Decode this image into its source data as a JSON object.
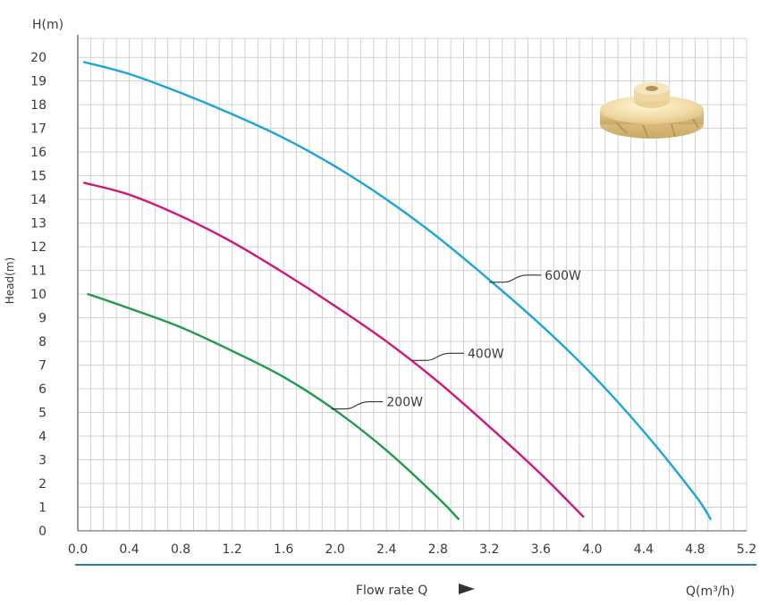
{
  "chart_data": {
    "type": "line",
    "y_unit_label": "H(m)",
    "y_axis_label": "Head(m)",
    "x_axis_label": "Flow rate Q",
    "x_unit_label": "Q(m³/h)",
    "xlim": [
      0,
      5.2
    ],
    "ylim": [
      0,
      20.8
    ],
    "x_ticks": [
      "0.0",
      "0.4",
      "0.8",
      "1.2",
      "1.6",
      "2.0",
      "2.4",
      "2.8",
      "3.2",
      "3.6",
      "4.0",
      "4.4",
      "4.8",
      "5.2"
    ],
    "y_ticks": [
      "0",
      "1",
      "2",
      "3",
      "4",
      "5",
      "6",
      "7",
      "8",
      "9",
      "10",
      "11",
      "12",
      "13",
      "14",
      "15",
      "16",
      "17",
      "18",
      "19",
      "20"
    ],
    "grid": true,
    "series": [
      {
        "name": "600W",
        "color": "#1ba3dc",
        "x": [
          0.05,
          0.4,
          0.8,
          1.2,
          1.6,
          2.0,
          2.4,
          2.8,
          3.2,
          3.6,
          4.0,
          4.4,
          4.8,
          4.92
        ],
        "y": [
          19.8,
          19.3,
          18.5,
          17.6,
          16.6,
          15.4,
          14.0,
          12.4,
          10.6,
          8.7,
          6.6,
          4.2,
          1.5,
          0.5
        ]
      },
      {
        "name": "400W",
        "color": "#d0167a",
        "x": [
          0.05,
          0.4,
          0.8,
          1.2,
          1.6,
          2.0,
          2.4,
          2.8,
          3.2,
          3.6,
          3.93
        ],
        "y": [
          14.7,
          14.2,
          13.3,
          12.2,
          10.9,
          9.5,
          8.0,
          6.3,
          4.4,
          2.4,
          0.6
        ]
      },
      {
        "name": "200W",
        "color": "#1f9a4a",
        "x": [
          0.08,
          0.4,
          0.8,
          1.2,
          1.6,
          2.0,
          2.4,
          2.8,
          2.96
        ],
        "y": [
          10.0,
          9.4,
          8.6,
          7.6,
          6.5,
          5.1,
          3.4,
          1.4,
          0.5
        ]
      }
    ],
    "label_anchors": [
      {
        "series": "600W",
        "x": 3.2,
        "y": 10.5
      },
      {
        "series": "400W",
        "x": 2.6,
        "y": 7.2
      },
      {
        "series": "200W",
        "x": 1.97,
        "y": 5.15
      }
    ],
    "axis_line_color": "#2a7fa0"
  }
}
